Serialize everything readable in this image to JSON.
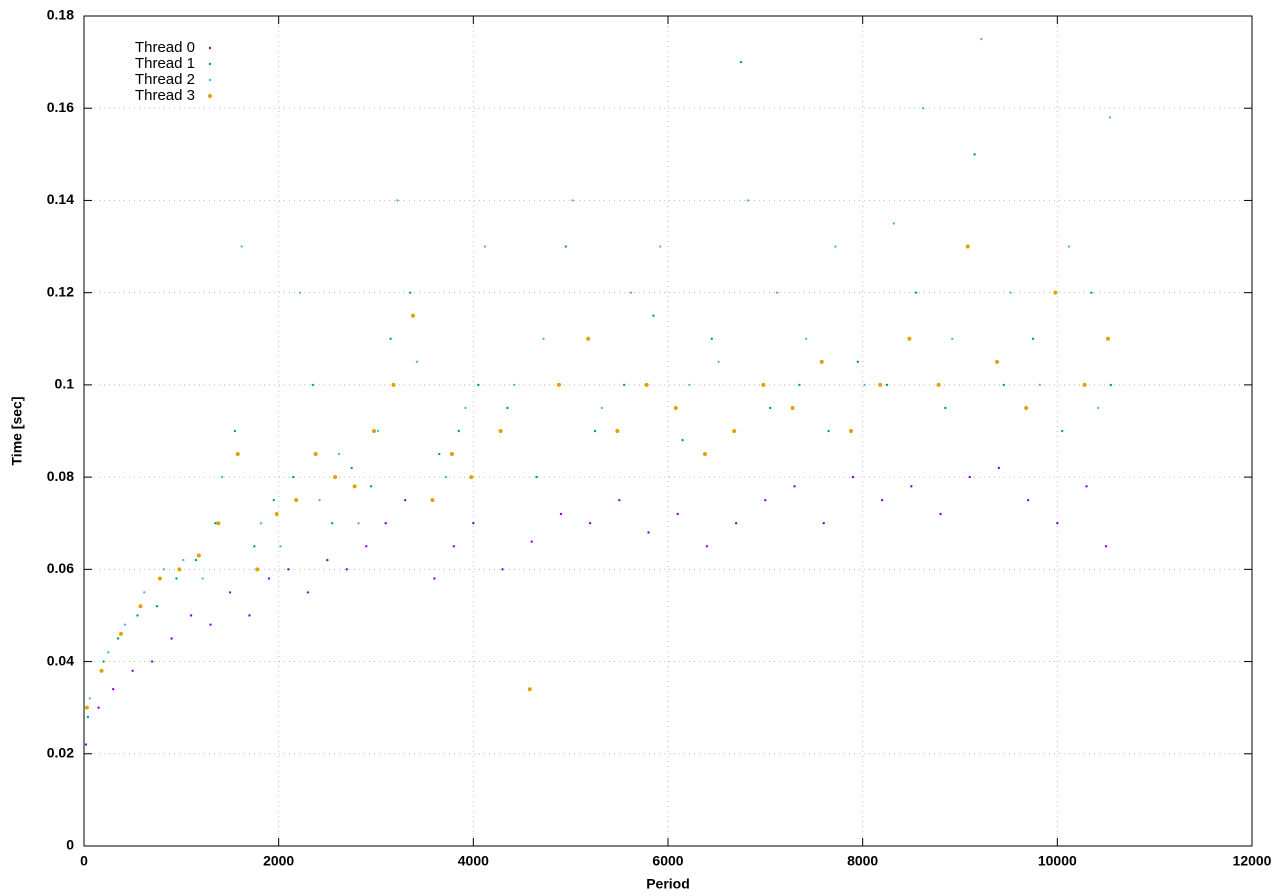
{
  "chart_data": {
    "type": "scatter",
    "xlabel": "Period",
    "ylabel": "Time [sec]",
    "xlim": [
      0,
      12000
    ],
    "xticks": [
      0,
      2000,
      4000,
      6000,
      8000,
      10000,
      12000
    ],
    "ylim": [
      0,
      0.18
    ],
    "yticks": [
      0,
      0.02,
      0.04,
      0.06,
      0.08,
      0.1,
      0.12,
      0.14,
      0.16,
      0.18
    ],
    "grid": true,
    "legend": "top-left",
    "series": [
      {
        "name": "Thread 0",
        "color": "#9400d3",
        "x": [
          20,
          150,
          300,
          500,
          700,
          900,
          1100,
          1300,
          1500,
          1700,
          1900,
          2100,
          2300,
          2500,
          2700,
          2900,
          3100,
          3300,
          3600,
          3800,
          4000,
          4300,
          4600,
          4900,
          5200,
          5500,
          5800,
          6100,
          6400,
          6700,
          7000,
          7300,
          7600,
          7900,
          8200,
          8500,
          8800,
          9100,
          9400,
          9700,
          10000,
          10300,
          10500
        ],
        "values": [
          0.022,
          0.03,
          0.034,
          0.038,
          0.04,
          0.045,
          0.05,
          0.048,
          0.055,
          0.05,
          0.058,
          0.06,
          0.055,
          0.062,
          0.06,
          0.065,
          0.07,
          0.075,
          0.058,
          0.065,
          0.07,
          0.06,
          0.066,
          0.072,
          0.07,
          0.075,
          0.068,
          0.072,
          0.065,
          0.07,
          0.075,
          0.078,
          0.07,
          0.08,
          0.075,
          0.078,
          0.072,
          0.08,
          0.082,
          0.075,
          0.07,
          0.078,
          0.065
        ]
      },
      {
        "name": "Thread 1",
        "color": "#009e73",
        "x": [
          40,
          200,
          350,
          550,
          750,
          950,
          1150,
          1350,
          1550,
          1750,
          1950,
          2150,
          2350,
          2550,
          2750,
          2950,
          3150,
          3350,
          3650,
          3850,
          4050,
          4350,
          4650,
          4950,
          5250,
          5550,
          5850,
          6150,
          6450,
          6750,
          7050,
          7350,
          7650,
          7950,
          8250,
          8550,
          8850,
          9150,
          9450,
          9750,
          10050,
          10350,
          10550
        ],
        "values": [
          0.028,
          0.04,
          0.045,
          0.05,
          0.052,
          0.058,
          0.062,
          0.07,
          0.09,
          0.065,
          0.075,
          0.08,
          0.1,
          0.07,
          0.082,
          0.078,
          0.11,
          0.12,
          0.085,
          0.09,
          0.1,
          0.095,
          0.08,
          0.13,
          0.09,
          0.1,
          0.115,
          0.088,
          0.11,
          0.17,
          0.095,
          0.1,
          0.09,
          0.105,
          0.1,
          0.12,
          0.095,
          0.15,
          0.1,
          0.11,
          0.09,
          0.12,
          0.1
        ]
      },
      {
        "name": "Thread 2",
        "color": "#56b4e9",
        "x": [
          60,
          250,
          420,
          620,
          820,
          1020,
          1220,
          1420,
          1620,
          1820,
          2020,
          2220,
          2420,
          2620,
          2820,
          3020,
          3220,
          3420,
          3720,
          3920,
          4120,
          4420,
          4720,
          5020,
          5320,
          5620,
          5920,
          6220,
          6520,
          6820,
          7120,
          7420,
          7720,
          8020,
          8320,
          8620,
          8920,
          9220,
          9520,
          9820,
          10120,
          10420,
          10540
        ],
        "values": [
          0.032,
          0.042,
          0.048,
          0.055,
          0.06,
          0.062,
          0.058,
          0.08,
          0.13,
          0.07,
          0.065,
          0.12,
          0.075,
          0.085,
          0.07,
          0.09,
          0.14,
          0.105,
          0.08,
          0.095,
          0.13,
          0.1,
          0.11,
          0.14,
          0.095,
          0.12,
          0.13,
          0.1,
          0.105,
          0.14,
          0.12,
          0.11,
          0.13,
          0.1,
          0.135,
          0.16,
          0.11,
          0.175,
          0.12,
          0.1,
          0.13,
          0.095,
          0.158
        ]
      },
      {
        "name": "Thread 3",
        "color": "#e69f00",
        "x": [
          30,
          180,
          380,
          580,
          780,
          980,
          1180,
          1380,
          1580,
          1780,
          1980,
          2180,
          2380,
          2580,
          2780,
          2980,
          3180,
          3380,
          3580,
          3780,
          3980,
          4280,
          4580,
          4880,
          5180,
          5480,
          5780,
          6080,
          6380,
          6680,
          6980,
          7280,
          7580,
          7880,
          8180,
          8480,
          8780,
          9080,
          9380,
          9680,
          9980,
          10280,
          10520
        ],
        "values": [
          0.03,
          0.038,
          0.046,
          0.052,
          0.058,
          0.06,
          0.063,
          0.07,
          0.085,
          0.06,
          0.072,
          0.075,
          0.085,
          0.08,
          0.078,
          0.09,
          0.1,
          0.115,
          0.075,
          0.085,
          0.08,
          0.09,
          0.034,
          0.1,
          0.11,
          0.09,
          0.1,
          0.095,
          0.085,
          0.09,
          0.1,
          0.095,
          0.105,
          0.09,
          0.1,
          0.11,
          0.1,
          0.13,
          0.105,
          0.095,
          0.12,
          0.1,
          0.11
        ]
      }
    ]
  }
}
